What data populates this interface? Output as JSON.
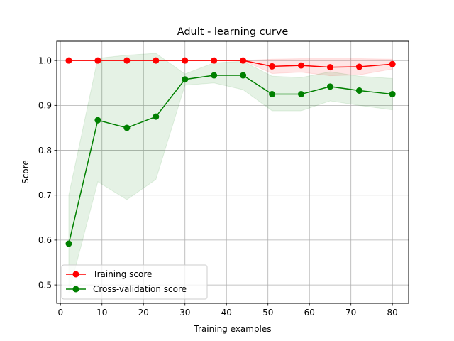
{
  "chart_data": {
    "type": "line",
    "title": "Adult - learning curve",
    "xlabel": "Training examples",
    "ylabel": "Score",
    "xlim": [
      -0.9,
      83.9
    ],
    "ylim": [
      0.459,
      1.043
    ],
    "xticks": [
      0,
      10,
      20,
      30,
      40,
      50,
      60,
      70,
      80
    ],
    "yticks": [
      0.5,
      0.6,
      0.7,
      0.8,
      0.9,
      1.0
    ],
    "ytick_labels": [
      "0.5",
      "0.6",
      "0.7",
      "0.8",
      "0.9",
      "1.0"
    ],
    "grid": true,
    "legend_position": "lower-left",
    "x": [
      2,
      9,
      16,
      23,
      30,
      37,
      44,
      51,
      58,
      65,
      72,
      80
    ],
    "series": [
      {
        "name": "Training score",
        "color": "#ff0000",
        "values": [
          1.0,
          1.0,
          1.0,
          1.0,
          1.0,
          1.0,
          1.0,
          0.987,
          0.989,
          0.985,
          0.986,
          0.992
        ],
        "band_upper": [
          1.0,
          1.0,
          1.0,
          1.0,
          1.0,
          1.0,
          1.0,
          1.003,
          1.004,
          1.004,
          1.004,
          1.003
        ],
        "band_lower": [
          1.0,
          1.0,
          1.0,
          1.0,
          1.0,
          1.0,
          1.0,
          0.971,
          0.974,
          0.966,
          0.968,
          0.981
        ]
      },
      {
        "name": "Cross-validation score",
        "color": "#008000",
        "values": [
          0.592,
          0.867,
          0.85,
          0.875,
          0.958,
          0.967,
          0.967,
          0.925,
          0.925,
          0.942,
          0.933,
          0.925
        ],
        "band_upper": [
          0.7,
          1.005,
          1.012,
          1.016,
          0.97,
          0.995,
          0.998,
          0.965,
          0.962,
          0.975,
          0.965,
          0.96
        ],
        "band_lower": [
          0.482,
          0.73,
          0.69,
          0.735,
          0.945,
          0.95,
          0.935,
          0.888,
          0.888,
          0.91,
          0.9,
          0.89
        ]
      }
    ]
  }
}
